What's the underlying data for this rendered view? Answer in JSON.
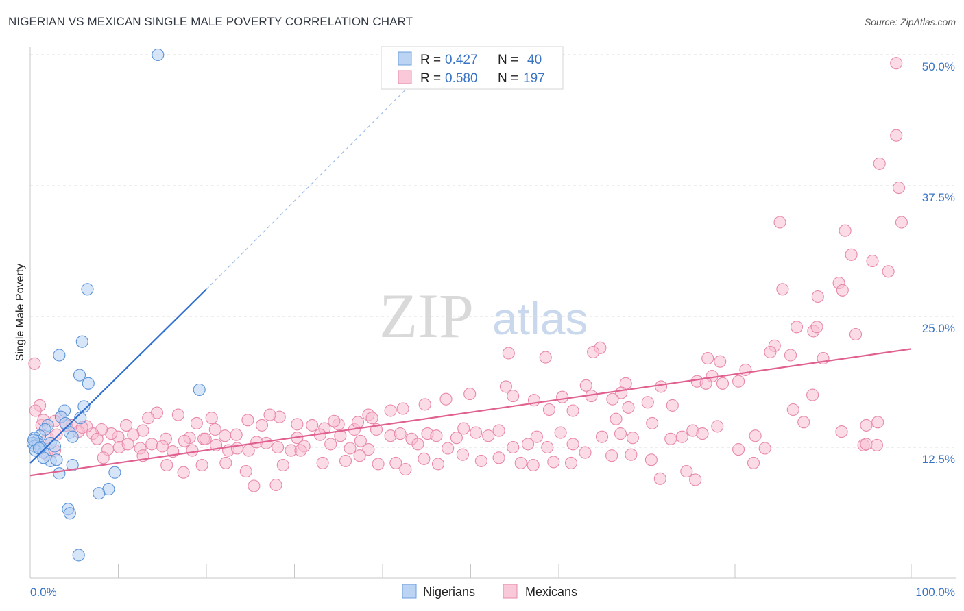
{
  "header": {
    "title": "NIGERIAN VS MEXICAN SINGLE MALE POVERTY CORRELATION CHART",
    "source": "Source: ZipAtlas.com"
  },
  "watermark": {
    "zip": "ZIP",
    "atlas": "atlas"
  },
  "legend": {
    "r_label": "R =",
    "n_label": "N =",
    "rows": [
      {
        "r": "0.427",
        "n": "40"
      },
      {
        "r": "0.580",
        "n": "197"
      }
    ]
  },
  "bottom_legend": {
    "series1": "Nigerians",
    "series2": "Mexicans"
  },
  "chart_data": {
    "type": "scatter",
    "title": "NIGERIAN VS MEXICAN SINGLE MALE POVERTY CORRELATION CHART",
    "xlabel": "",
    "ylabel": "Single Male Poverty",
    "xlim": [
      0,
      100
    ],
    "ylim": [
      0,
      50
    ],
    "x_tick_labels": [
      "0.0%",
      "100.0%"
    ],
    "y_tick_labels": [
      "12.5%",
      "25.0%",
      "37.5%",
      "50.0%"
    ],
    "y_ticks": [
      12.5,
      25.0,
      37.5,
      50.0
    ],
    "grid": true,
    "legend_position": "top-center",
    "colors": {
      "nigerians": "#5b93d8",
      "mexicans": "#e87aa0",
      "nigerians_line": "#2f6fd0",
      "mexicans_line": "#e0608f",
      "tick_text": "#3a74c4"
    },
    "series": [
      {
        "name": "Nigerians",
        "r": 0.427,
        "n": 40,
        "trend": {
          "x": [
            0.0,
            20.0
          ],
          "y": [
            11.0,
            27.6
          ],
          "dashed_extension_to": [
            43.0,
            47.0
          ]
        },
        "points": [
          [
            14.5,
            50.0
          ],
          [
            6.5,
            27.6
          ],
          [
            5.9,
            22.6
          ],
          [
            3.3,
            21.3
          ],
          [
            5.6,
            19.4
          ],
          [
            6.6,
            18.6
          ],
          [
            19.2,
            18.0
          ],
          [
            6.1,
            16.4
          ],
          [
            3.9,
            16.0
          ],
          [
            5.7,
            15.3
          ],
          [
            3.5,
            15.4
          ],
          [
            2.0,
            14.6
          ],
          [
            4.0,
            14.8
          ],
          [
            1.7,
            14.2
          ],
          [
            4.5,
            13.9
          ],
          [
            1.1,
            13.6
          ],
          [
            4.8,
            13.5
          ],
          [
            0.5,
            13.4
          ],
          [
            0.8,
            13.1
          ],
          [
            0.3,
            12.9
          ],
          [
            2.3,
            12.9
          ],
          [
            0.9,
            12.8
          ],
          [
            0.5,
            12.6
          ],
          [
            1.2,
            12.5
          ],
          [
            2.8,
            12.6
          ],
          [
            0.6,
            12.2
          ],
          [
            1.5,
            12.0
          ],
          [
            2.3,
            11.2
          ],
          [
            1.5,
            11.5
          ],
          [
            3.0,
            11.3
          ],
          [
            4.8,
            10.8
          ],
          [
            3.3,
            10.0
          ],
          [
            9.6,
            10.1
          ],
          [
            8.9,
            8.5
          ],
          [
            7.8,
            8.1
          ],
          [
            4.3,
            6.6
          ],
          [
            4.5,
            6.2
          ],
          [
            5.5,
            2.2
          ],
          [
            0.4,
            13.2
          ],
          [
            1.0,
            12.4
          ]
        ]
      },
      {
        "name": "Mexicans",
        "r": 0.58,
        "n": 197,
        "trend": {
          "x": [
            0.0,
            100.0
          ],
          "y": [
            9.8,
            21.9
          ]
        },
        "points": [
          [
            98.3,
            49.2
          ],
          [
            98.3,
            42.3
          ],
          [
            96.4,
            39.6
          ],
          [
            98.6,
            37.3
          ],
          [
            98.9,
            34.0
          ],
          [
            85.1,
            34.0
          ],
          [
            92.5,
            33.2
          ],
          [
            93.2,
            30.9
          ],
          [
            95.6,
            30.3
          ],
          [
            97.4,
            29.3
          ],
          [
            91.8,
            28.2
          ],
          [
            92.2,
            27.5
          ],
          [
            85.4,
            27.6
          ],
          [
            89.4,
            26.9
          ],
          [
            87.0,
            24.0
          ],
          [
            88.9,
            23.6
          ],
          [
            89.3,
            24.0
          ],
          [
            93.7,
            23.3
          ],
          [
            84.5,
            22.2
          ],
          [
            86.3,
            21.3
          ],
          [
            84.0,
            21.6
          ],
          [
            76.9,
            21.0
          ],
          [
            78.3,
            20.7
          ],
          [
            81.2,
            19.9
          ],
          [
            77.4,
            19.3
          ],
          [
            75.7,
            18.8
          ],
          [
            78.6,
            18.6
          ],
          [
            64.7,
            22.0
          ],
          [
            63.9,
            21.6
          ],
          [
            58.5,
            21.1
          ],
          [
            90.0,
            21.0
          ],
          [
            0.5,
            20.5
          ],
          [
            54.3,
            21.5
          ],
          [
            54.0,
            18.3
          ],
          [
            63.1,
            18.4
          ],
          [
            67.6,
            18.6
          ],
          [
            76.7,
            18.6
          ],
          [
            71.6,
            18.3
          ],
          [
            67.1,
            17.7
          ],
          [
            66.1,
            17.1
          ],
          [
            63.7,
            17.4
          ],
          [
            60.4,
            17.3
          ],
          [
            70.1,
            16.8
          ],
          [
            67.9,
            16.3
          ],
          [
            61.6,
            16.0
          ],
          [
            58.9,
            16.1
          ],
          [
            57.2,
            17.0
          ],
          [
            54.8,
            17.4
          ],
          [
            49.9,
            17.6
          ],
          [
            47.2,
            17.1
          ],
          [
            44.8,
            16.6
          ],
          [
            42.3,
            16.2
          ],
          [
            40.9,
            16.0
          ],
          [
            38.4,
            15.6
          ],
          [
            36.8,
            14.2
          ],
          [
            38.8,
            15.3
          ],
          [
            37.2,
            14.9
          ],
          [
            35.0,
            14.7
          ],
          [
            34.5,
            15.0
          ],
          [
            33.4,
            14.3
          ],
          [
            32.0,
            14.6
          ],
          [
            30.3,
            14.7
          ],
          [
            28.3,
            15.4
          ],
          [
            27.2,
            15.6
          ],
          [
            26.3,
            14.6
          ],
          [
            24.7,
            15.1
          ],
          [
            23.4,
            13.7
          ],
          [
            22.1,
            13.6
          ],
          [
            21.0,
            14.2
          ],
          [
            20.6,
            15.3
          ],
          [
            19.7,
            13.3
          ],
          [
            18.9,
            14.8
          ],
          [
            18.1,
            13.4
          ],
          [
            16.8,
            15.6
          ],
          [
            15.4,
            13.3
          ],
          [
            14.4,
            15.8
          ],
          [
            13.4,
            15.3
          ],
          [
            12.8,
            14.1
          ],
          [
            11.7,
            13.7
          ],
          [
            10.9,
            14.6
          ],
          [
            10.0,
            13.5
          ],
          [
            9.2,
            13.8
          ],
          [
            8.1,
            14.2
          ],
          [
            7.1,
            13.8
          ],
          [
            6.4,
            14.5
          ],
          [
            5.5,
            14.0
          ],
          [
            4.7,
            14.6
          ],
          [
            4.1,
            14.6
          ],
          [
            3.5,
            15.4
          ],
          [
            2.8,
            15.0
          ],
          [
            1.3,
            14.6
          ],
          [
            1.1,
            16.5
          ],
          [
            0.6,
            16.0
          ],
          [
            1.5,
            15.1
          ],
          [
            2.0,
            13.4
          ],
          [
            3.0,
            13.7
          ],
          [
            5.9,
            14.4
          ],
          [
            7.6,
            13.3
          ],
          [
            8.8,
            12.3
          ],
          [
            10.1,
            12.5
          ],
          [
            11.1,
            12.8
          ],
          [
            12.5,
            12.4
          ],
          [
            13.8,
            12.8
          ],
          [
            15.0,
            12.6
          ],
          [
            16.2,
            12.1
          ],
          [
            17.5,
            13.1
          ],
          [
            18.4,
            12.2
          ],
          [
            19.9,
            13.3
          ],
          [
            21.1,
            12.7
          ],
          [
            22.5,
            12.2
          ],
          [
            23.5,
            12.4
          ],
          [
            24.8,
            12.2
          ],
          [
            25.7,
            13.0
          ],
          [
            26.8,
            12.9
          ],
          [
            28.1,
            12.5
          ],
          [
            29.6,
            12.2
          ],
          [
            30.3,
            13.4
          ],
          [
            31.1,
            12.6
          ],
          [
            32.9,
            13.7
          ],
          [
            34.1,
            12.8
          ],
          [
            35.2,
            13.6
          ],
          [
            36.3,
            12.4
          ],
          [
            37.5,
            13.1
          ],
          [
            38.4,
            12.3
          ],
          [
            39.3,
            14.2
          ],
          [
            40.9,
            13.6
          ],
          [
            42.0,
            13.8
          ],
          [
            43.3,
            13.3
          ],
          [
            44.0,
            12.8
          ],
          [
            45.1,
            13.8
          ],
          [
            46.1,
            13.6
          ],
          [
            47.4,
            12.4
          ],
          [
            48.4,
            13.4
          ],
          [
            49.2,
            14.3
          ],
          [
            50.6,
            13.9
          ],
          [
            52.0,
            13.6
          ],
          [
            53.2,
            14.1
          ],
          [
            54.8,
            12.5
          ],
          [
            56.5,
            12.8
          ],
          [
            57.5,
            13.5
          ],
          [
            58.7,
            12.5
          ],
          [
            60.2,
            13.9
          ],
          [
            61.6,
            12.8
          ],
          [
            63.0,
            12.0
          ],
          [
            64.9,
            13.5
          ],
          [
            67.0,
            13.8
          ],
          [
            68.4,
            13.4
          ],
          [
            70.6,
            14.8
          ],
          [
            72.7,
            13.3
          ],
          [
            74.0,
            13.5
          ],
          [
            75.2,
            14.1
          ],
          [
            76.3,
            13.8
          ],
          [
            78.0,
            14.5
          ],
          [
            80.4,
            12.3
          ],
          [
            82.3,
            13.6
          ],
          [
            83.4,
            12.4
          ],
          [
            87.8,
            14.9
          ],
          [
            92.1,
            14.0
          ],
          [
            94.6,
            12.7
          ],
          [
            94.9,
            12.8
          ],
          [
            94.9,
            14.6
          ],
          [
            96.1,
            12.7
          ],
          [
            96.2,
            14.9
          ],
          [
            88.8,
            17.5
          ],
          [
            86.6,
            16.1
          ],
          [
            80.4,
            18.8
          ],
          [
            66.5,
            15.2
          ],
          [
            72.9,
            16.5
          ],
          [
            1.9,
            11.8
          ],
          [
            2.8,
            12.2
          ],
          [
            8.3,
            11.5
          ],
          [
            12.8,
            11.7
          ],
          [
            15.5,
            10.8
          ],
          [
            17.4,
            10.1
          ],
          [
            19.5,
            10.8
          ],
          [
            22.2,
            11.0
          ],
          [
            24.5,
            10.2
          ],
          [
            25.4,
            8.8
          ],
          [
            27.9,
            8.9
          ],
          [
            28.7,
            10.8
          ],
          [
            30.7,
            12.2
          ],
          [
            33.2,
            11.0
          ],
          [
            35.8,
            11.2
          ],
          [
            37.4,
            11.7
          ],
          [
            39.5,
            10.9
          ],
          [
            41.5,
            11.0
          ],
          [
            42.6,
            10.4
          ],
          [
            44.7,
            11.4
          ],
          [
            46.3,
            10.9
          ],
          [
            49.1,
            11.8
          ],
          [
            51.2,
            11.2
          ],
          [
            53.2,
            11.5
          ],
          [
            55.7,
            11.0
          ],
          [
            57.1,
            10.8
          ],
          [
            59.4,
            11.1
          ],
          [
            61.4,
            11.0
          ],
          [
            66.0,
            11.7
          ],
          [
            68.2,
            11.8
          ],
          [
            70.5,
            11.3
          ],
          [
            71.5,
            9.5
          ],
          [
            74.5,
            10.2
          ],
          [
            75.5,
            9.4
          ],
          [
            82.1,
            11.0
          ]
        ]
      }
    ]
  }
}
